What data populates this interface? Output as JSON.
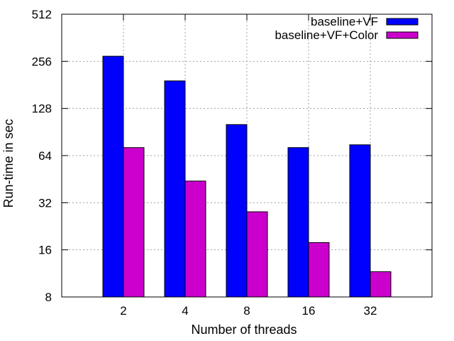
{
  "chart_data": {
    "type": "bar",
    "xlabel": "Number of threads",
    "ylabel": "Run-time in sec",
    "categories": [
      "2",
      "4",
      "8",
      "16",
      "32"
    ],
    "y_scale": "log2",
    "ylim": [
      8,
      512
    ],
    "yticks": [
      8,
      16,
      32,
      64,
      128,
      256,
      512
    ],
    "grid": true,
    "legend_position": "top-right",
    "series": [
      {
        "name": "baseline+VF",
        "color": "#0000ff",
        "values": [
          276,
          192,
          101,
          72,
          75
        ]
      },
      {
        "name": "baseline+VF+Color",
        "color": "#cc00cc",
        "values": [
          72,
          44,
          28,
          17.8,
          11.6
        ]
      }
    ]
  }
}
